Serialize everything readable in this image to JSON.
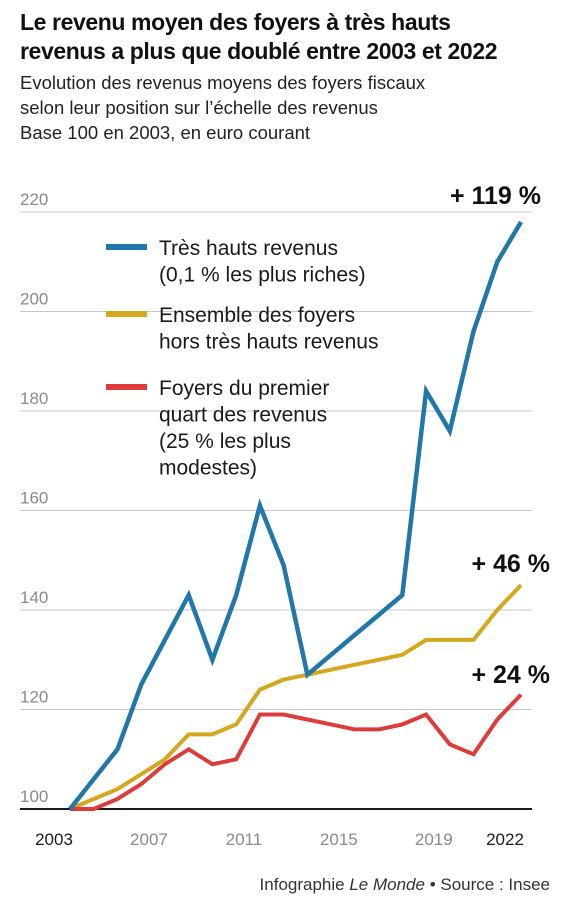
{
  "title_lines": [
    "Le revenu moyen des foyers à très hauts",
    "revenus a plus que doublé entre 2003 et 2022"
  ],
  "subtitle_lines": [
    "Evolution des revenus moyens des foyers fiscaux",
    "selon leur position sur l’échelle des revenus",
    "Base 100 en 2003, en euro courant"
  ],
  "footer": {
    "prefix": "Infographie ",
    "publication": "Le Monde",
    "separator": " • ",
    "source": "Source : Insee"
  },
  "chart_data": {
    "type": "line",
    "ylim": [
      100,
      222
    ],
    "y_ticks": [
      100,
      120,
      140,
      160,
      180,
      200,
      220
    ],
    "y_tick_labels": [
      "100",
      "120",
      "140",
      "160",
      "180",
      "200",
      "220"
    ],
    "x_range": [
      2003,
      2022
    ],
    "x_ticks": [
      2003,
      2007,
      2011,
      2015,
      2019,
      2022
    ],
    "x_tick_labels": [
      "2003",
      "2007",
      "2011",
      "2015",
      "2019",
      "2022"
    ],
    "grid": true,
    "legend_position": "top-left",
    "series": [
      {
        "name": "Très hauts revenus (0,1 % les plus riches)",
        "legend_lines": [
          "Très hauts revenus",
          "(0,1 % les plus riches)"
        ],
        "color": "#2177a8",
        "x": [
          2003,
          2004,
          2005,
          2006,
          2007,
          2008,
          2009,
          2010,
          2011,
          2012,
          2013,
          2014,
          2015,
          2016,
          2017,
          2018,
          2019,
          2020,
          2021,
          2022
        ],
        "values": [
          100,
          106,
          112,
          125,
          134,
          143,
          130,
          143,
          161,
          149,
          127,
          131,
          135,
          139,
          143,
          184,
          176,
          196,
          210,
          218
        ],
        "end_label": "+ 119 %"
      },
      {
        "name": "Ensemble des foyers hors très hauts revenus",
        "legend_lines": [
          "Ensemble des foyers",
          "hors très hauts revenus"
        ],
        "color": "#d4a81c",
        "x": [
          2003,
          2004,
          2005,
          2006,
          2007,
          2008,
          2009,
          2010,
          2011,
          2012,
          2013,
          2014,
          2015,
          2016,
          2017,
          2018,
          2019,
          2020,
          2021,
          2022
        ],
        "values": [
          100,
          102,
          104,
          107,
          110,
          115,
          115,
          117,
          124,
          126,
          127,
          128,
          129,
          130,
          131,
          134,
          134,
          134,
          140,
          145
        ],
        "end_label": "+ 46 %"
      },
      {
        "name": "Foyers du premier quart des revenus (25 % les plus modestes)",
        "legend_lines": [
          "Foyers du premier",
          "quart des revenus",
          "(25 % les plus",
          "modestes)"
        ],
        "color": "#dc3c3b",
        "x": [
          2003,
          2004,
          2005,
          2006,
          2007,
          2008,
          2009,
          2010,
          2011,
          2012,
          2013,
          2014,
          2015,
          2016,
          2017,
          2018,
          2019,
          2020,
          2021,
          2022
        ],
        "values": [
          100,
          100,
          102,
          105,
          109,
          112,
          109,
          110,
          119,
          119,
          118,
          117,
          116,
          116,
          117,
          119,
          113,
          111,
          118,
          123
        ],
        "end_label": "+ 24 %"
      }
    ]
  }
}
